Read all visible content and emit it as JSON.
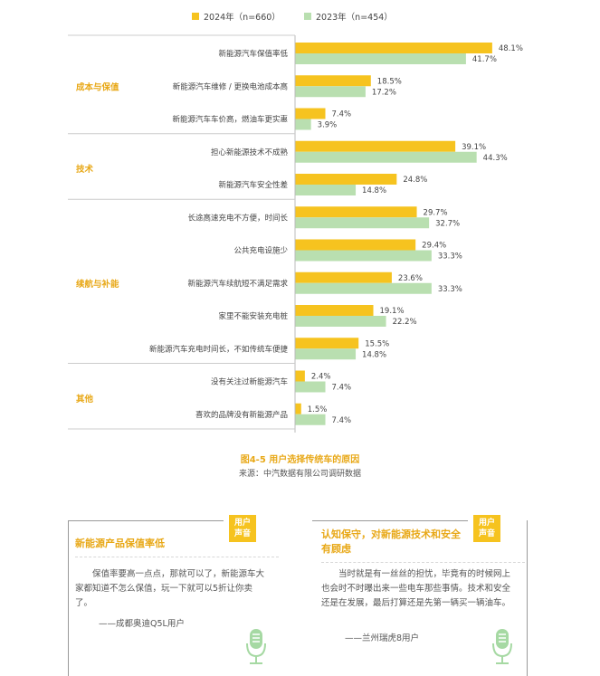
{
  "chart_data": {
    "type": "bar",
    "orientation": "horizontal",
    "legend_position": "top",
    "series": [
      {
        "name": "2024年（n=660）",
        "color": "#f6c31f",
        "values": [
          48.1,
          18.5,
          7.4,
          39.1,
          24.8,
          29.7,
          29.4,
          23.6,
          19.1,
          15.5,
          2.4,
          1.5
        ]
      },
      {
        "name": "2023年（n=454）",
        "color": "#b9dfb0",
        "values": [
          41.7,
          17.2,
          3.9,
          44.3,
          14.8,
          32.7,
          33.3,
          33.3,
          22.2,
          14.8,
          7.4,
          7.4
        ]
      }
    ],
    "categories": [
      "新能源汽车保值率低",
      "新能源汽车维修 / 更换电池成本高",
      "新能源汽车车价高，燃油车更实惠",
      "担心新能源技术不成熟",
      "新能源汽车安全性差",
      "长途高速充电不方便，时间长",
      "公共充电设施少",
      "新能源汽车续航短不满足需求",
      "家里不能安装充电桩",
      "新能源汽车充电时间长，不如传统车便捷",
      "没有关注过新能源汽车",
      "喜欢的品牌没有新能源产品"
    ],
    "groups": [
      {
        "label": "成本与保值",
        "count": 3
      },
      {
        "label": "技术",
        "count": 2
      },
      {
        "label": "续航与补能",
        "count": 5
      },
      {
        "label": "其他",
        "count": 2
      }
    ],
    "value_suffix": "%",
    "xlim": [
      0,
      50
    ],
    "grid": false,
    "caption": "图4-5 用户选择传统车的原因",
    "source": "来源：中汽数据有限公司调研数据"
  },
  "colors": {
    "accent": "#e8a817",
    "series_2024": "#f6c31f",
    "series_2023": "#b9dfb0",
    "mic": "#a6d9a3"
  },
  "cards": [
    {
      "badge": "用户\n声音",
      "title": "新能源产品保值率低",
      "body": "保值率要高一点点，那就可以了，新能源车大家都知道不怎么保值，玩一下就可以5折让你卖了。",
      "attribution": "——成都奥迪Q5L用户",
      "icon": "microphone-icon"
    },
    {
      "badge": "用户\n声音",
      "title": "认知保守，对新能源技术和安全有顾虑",
      "body": "当时就是有一丝丝的担忧，毕竟有的时候网上也会时不时曝出来一些电车那些事情。技术和安全还是在发展，最后打算还是先第一辆买一辆油车。",
      "attribution": "——兰州瑞虎8用户",
      "icon": "microphone-icon"
    }
  ]
}
